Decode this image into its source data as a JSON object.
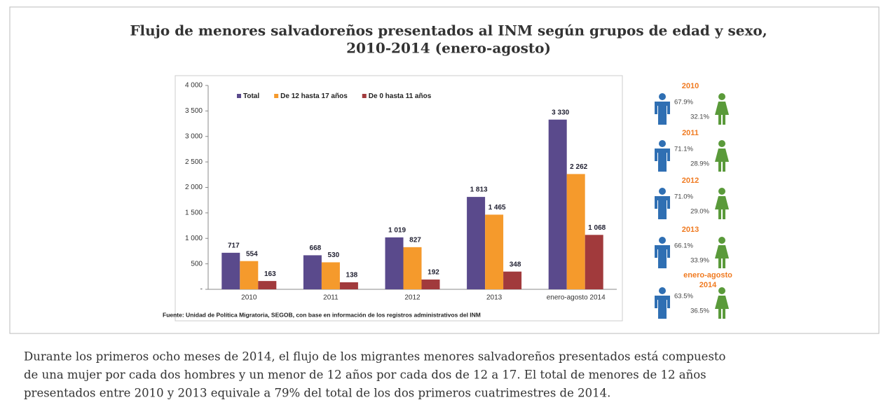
{
  "chart_data": {
    "type": "bar",
    "title": [
      "Flujo de menores salvadoreños presentados al INM según grupos de edad y sexo,",
      "2010-2014 (enero-agosto)"
    ],
    "categories": [
      "2010",
      "2011",
      "2012",
      "2013",
      "enero-agosto 2014"
    ],
    "series": [
      {
        "name": "Total",
        "color": "#5a4a8c",
        "values": [
          717,
          668,
          1019,
          1813,
          3330
        ],
        "value_labels": [
          "717",
          "668",
          "1 019",
          "1 813",
          "3 330"
        ]
      },
      {
        "name": "De 12 hasta 17 años",
        "color": "#f59a2c",
        "values": [
          554,
          530,
          827,
          1465,
          2262
        ],
        "value_labels": [
          "554",
          "530",
          "827",
          "1 465",
          "2 262"
        ]
      },
      {
        "name": "De 0 hasta 11 años",
        "color": "#a13a3c",
        "values": [
          163,
          138,
          192,
          348,
          1068
        ],
        "value_labels": [
          "163",
          "138",
          "192",
          "348",
          "1 068"
        ]
      }
    ],
    "ylim": [
      0,
      4000
    ],
    "yticks": [
      {
        "value": 0,
        "label": "-"
      },
      500,
      {
        "value": 1000,
        "label": "1 000"
      },
      {
        "value": 1500,
        "label": "1 500"
      },
      {
        "value": 2000,
        "label": "2 000"
      },
      {
        "value": 2500,
        "label": "2 500"
      },
      {
        "value": 3000,
        "label": "3 000"
      },
      {
        "value": 3500,
        "label": "3 500"
      },
      {
        "value": 4000,
        "label": "4 000"
      }
    ],
    "legend": "top",
    "source": "Fuente: Unidad de Política Migratoria, SEGOB, con base en información de los registros administrativos del INM"
  },
  "sidebar": [
    {
      "year": "2010",
      "male": "67.9%",
      "female": "32.1%"
    },
    {
      "year": "2011",
      "male": "71.1%",
      "female": "28.9%"
    },
    {
      "year": "2012",
      "male": "71.0%",
      "female": "29.0%"
    },
    {
      "year": "2013",
      "male": "66.1%",
      "female": "33.9%"
    },
    {
      "year": "enero-agosto 2014",
      "male": "63.5%",
      "female": "36.5%"
    }
  ],
  "paragraph": [
    "Durante los primeros ocho meses de 2014, el flujo de los migrantes menores salvadoreños presentados está compuesto",
    "de una mujer por cada dos hombres y un menor de 12 años por cada dos de 12 a 17. El total de menores de 12 años",
    "presentados entre 2010 y 2013 equivale a 79% del total de los dos primeros cuatrimestres de 2014."
  ]
}
